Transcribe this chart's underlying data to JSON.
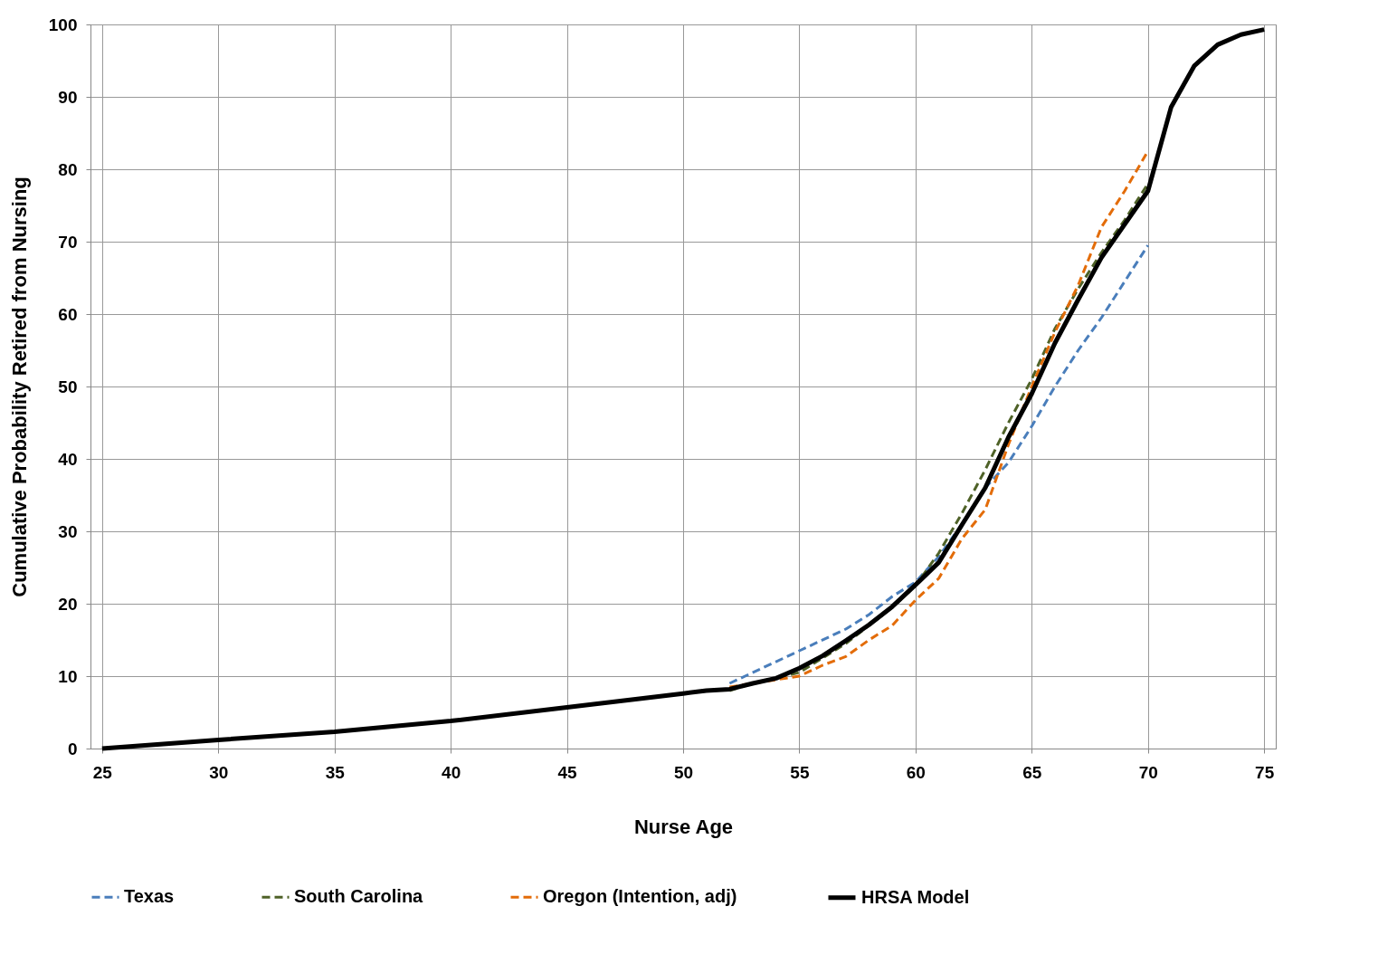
{
  "chart_data": {
    "type": "line",
    "xlabel": "Nurse Age",
    "ylabel": "Cumulative Probability Retired from Nursing",
    "xlim": [
      24.5,
      75.5
    ],
    "xticks": [
      25,
      30,
      35,
      40,
      45,
      50,
      55,
      60,
      65,
      70,
      75
    ],
    "ylim": [
      0,
      100
    ],
    "yticks": [
      0,
      10,
      20,
      30,
      40,
      50,
      60,
      70,
      80,
      90,
      100
    ],
    "grid": true,
    "legend": "bottom",
    "marker": "none",
    "series": [
      {
        "name": "Texas",
        "color": "#4a7ebb",
        "line_style": "dashed",
        "x": [
          52,
          55,
          57,
          58,
          59,
          60,
          61,
          62,
          63,
          64,
          65,
          66,
          67,
          68,
          69,
          70
        ],
        "values": [
          9,
          13.5,
          16.5,
          18.5,
          21,
          23,
          26.5,
          31,
          36,
          39.5,
          44.5,
          50,
          55,
          59.5,
          64.5,
          69.5
        ]
      },
      {
        "name": "South Carolina",
        "color": "#4f6228",
        "line_style": "dashed",
        "x": [
          52,
          53,
          55,
          57,
          59,
          60,
          61,
          62,
          63,
          64,
          65,
          66,
          67,
          68,
          69,
          70
        ],
        "values": [
          8,
          9,
          10.5,
          14.5,
          19.5,
          22.5,
          27,
          32.5,
          38.5,
          45,
          51,
          58,
          63.5,
          68.5,
          73,
          78
        ]
      },
      {
        "name": "Oregon (Intention, adj)",
        "color": "#e36c09",
        "line_style": "dashed",
        "x": [
          52,
          53,
          55,
          56,
          57,
          58,
          59,
          60,
          61,
          62,
          63,
          64,
          65,
          66,
          67,
          68,
          69,
          70
        ],
        "values": [
          8.5,
          9,
          10,
          11.5,
          12.7,
          15,
          17,
          20.5,
          23.5,
          29,
          33,
          42,
          50,
          57.5,
          64,
          72,
          77,
          82.5
        ]
      },
      {
        "name": "HRSA Model",
        "color": "#000000",
        "line_style": "solid",
        "x": [
          25,
          30,
          35,
          40,
          45,
          50,
          51,
          52,
          53,
          54,
          55,
          56,
          57,
          58,
          59,
          60,
          61,
          62,
          63,
          64,
          65,
          66,
          67,
          68,
          69,
          70,
          71,
          72,
          73,
          74,
          75
        ],
        "values": [
          0,
          1.2,
          2.3,
          3.8,
          5.7,
          7.6,
          8,
          8.2,
          9,
          9.7,
          11.1,
          12.8,
          14.9,
          17.1,
          19.6,
          22.6,
          25.7,
          30.9,
          36,
          43,
          49,
          56,
          62,
          67.8,
          72.4,
          77,
          88.6,
          94.3,
          97.2,
          98.6,
          99.3
        ]
      }
    ]
  }
}
